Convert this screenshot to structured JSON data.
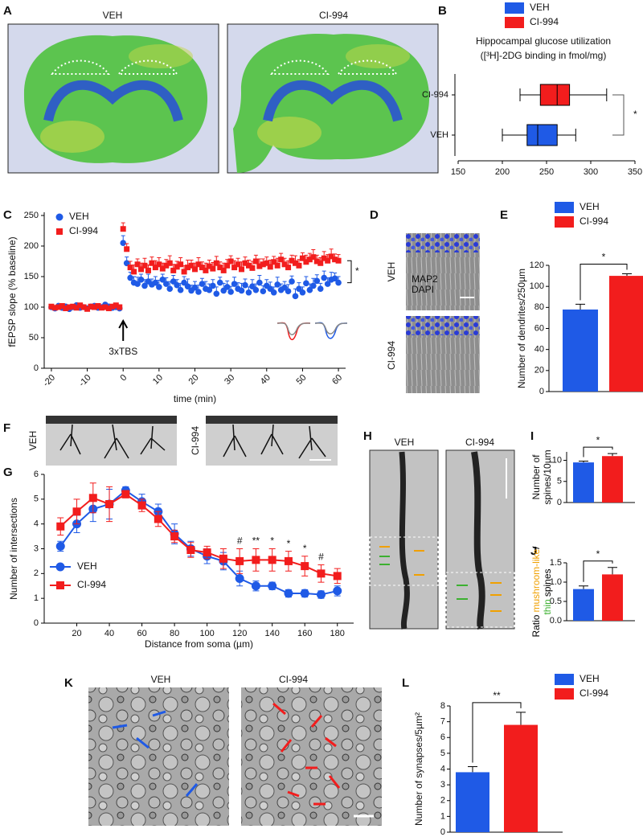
{
  "panels": [
    {
      "letter": "A",
      "labels": [
        "VEH",
        "CI-994"
      ]
    },
    {
      "letter": "B"
    },
    {
      "letter": "C"
    },
    {
      "letter": "D",
      "labels": [
        "VEH",
        "CI-994"
      ],
      "stains": [
        "MAP2",
        "DAPI"
      ],
      "stain_colors": [
        "#ffffff",
        "#3246ff"
      ]
    },
    {
      "letter": "E"
    },
    {
      "letter": "F",
      "labels": [
        "VEH",
        "CI-994"
      ]
    },
    {
      "letter": "G"
    },
    {
      "letter": "H",
      "labels": [
        "VEH",
        "CI-994"
      ]
    },
    {
      "letter": "I"
    },
    {
      "letter": "J"
    },
    {
      "letter": "K",
      "labels": [
        "VEH",
        "CI-994"
      ]
    },
    {
      "letter": "L"
    }
  ],
  "chart_data": [
    {
      "type": "box",
      "title": "Hippocampal glucose utilization",
      "subtitle": "([³H]-2DG binding in fmol/mg)",
      "series": [
        {
          "name": "VEH",
          "color": "#1f5ae6",
          "min": 200,
          "q1": 228,
          "median": 240,
          "q3": 262,
          "max": 283
        },
        {
          "name": "CI-994",
          "color": "#f21d1d",
          "min": 220,
          "q1": 243,
          "median": 262,
          "q3": 276,
          "max": 318
        }
      ],
      "xlim": [
        150,
        350
      ],
      "xticks": [
        150,
        200,
        250,
        300,
        350
      ],
      "significance": "*"
    },
    {
      "type": "scatter",
      "xlabel": "time (min)",
      "ylabel": "fEPSP slope (% baseline)",
      "x": [
        -20,
        -19,
        -18,
        -17,
        -16,
        -15,
        -14,
        -13,
        -12,
        -11,
        -10,
        -9,
        -8,
        -7,
        -6,
        -5,
        -4,
        -3,
        -2,
        -1,
        0,
        1,
        2,
        3,
        4,
        5,
        6,
        7,
        8,
        9,
        10,
        11,
        12,
        13,
        14,
        15,
        16,
        17,
        18,
        19,
        20,
        21,
        22,
        23,
        24,
        25,
        26,
        27,
        28,
        29,
        30,
        31,
        32,
        33,
        34,
        35,
        36,
        37,
        38,
        39,
        40,
        41,
        42,
        43,
        44,
        45,
        46,
        47,
        48,
        49,
        50,
        51,
        52,
        53,
        54,
        55,
        56,
        57,
        58,
        59,
        60
      ],
      "series": [
        {
          "name": "VEH",
          "color": "#1f5ae6",
          "marker": "circle",
          "values": [
            100,
            98,
            102,
            99,
            101,
            97,
            100,
            103,
            99,
            100,
            98,
            101,
            102,
            99,
            100,
            104,
            101,
            99,
            100,
            98,
            205,
            172,
            148,
            140,
            138,
            145,
            135,
            142,
            137,
            140,
            133,
            145,
            138,
            130,
            142,
            136,
            128,
            140,
            134,
            127,
            132,
            125,
            138,
            130,
            128,
            135,
            122,
            140,
            127,
            133,
            125,
            138,
            130,
            127,
            136,
            124,
            134,
            128,
            140,
            126,
            135,
            130,
            124,
            137,
            128,
            132,
            126,
            142,
            118,
            130,
            124,
            139,
            128,
            135,
            143,
            130,
            148,
            138,
            145,
            147,
            140
          ],
          "errors": [
            3,
            3,
            3,
            3,
            3,
            3,
            3,
            3,
            3,
            3,
            3,
            3,
            3,
            3,
            3,
            3,
            3,
            3,
            3,
            3,
            12,
            10,
            9,
            10,
            11,
            9,
            10,
            12,
            9,
            10,
            11,
            9,
            10,
            12,
            10,
            9,
            11,
            10,
            12,
            9,
            10,
            11,
            9,
            12,
            10,
            10,
            11,
            9,
            12,
            10,
            9,
            11,
            10,
            12,
            10,
            9,
            11,
            10,
            12,
            9,
            10,
            11,
            9,
            12,
            10,
            10,
            11,
            9,
            12,
            10,
            9,
            11,
            10,
            12,
            10,
            9,
            11,
            10,
            12,
            9,
            10
          ]
        },
        {
          "name": "CI-994",
          "color": "#f21d1d",
          "marker": "square",
          "values": [
            101,
            99,
            100,
            102,
            98,
            100,
            101,
            99,
            103,
            100,
            97,
            101,
            100,
            102,
            99,
            100,
            98,
            101,
            103,
            100,
            228,
            195,
            165,
            158,
            170,
            162,
            168,
            160,
            172,
            165,
            170,
            163,
            168,
            172,
            160,
            166,
            170,
            158,
            165,
            168,
            162,
            170,
            165,
            160,
            167,
            163,
            172,
            165,
            160,
            168,
            175,
            165,
            170,
            162,
            172,
            168,
            164,
            175,
            167,
            170,
            172,
            166,
            174,
            168,
            178,
            170,
            165,
            176,
            172,
            168,
            180,
            174,
            178,
            182,
            175,
            172,
            180,
            176,
            183,
            178,
            176
          ],
          "errors": [
            3,
            3,
            3,
            3,
            3,
            3,
            3,
            3,
            3,
            3,
            3,
            3,
            3,
            3,
            3,
            3,
            3,
            3,
            3,
            3,
            10,
            9,
            10,
            11,
            9,
            10,
            12,
            9,
            10,
            11,
            11,
            9,
            10,
            12,
            10,
            9,
            11,
            10,
            12,
            9,
            10,
            11,
            9,
            12,
            10,
            10,
            11,
            9,
            12,
            10,
            9,
            11,
            10,
            12,
            10,
            9,
            11,
            10,
            12,
            9,
            10,
            11,
            9,
            12,
            10,
            10,
            11,
            9,
            12,
            10,
            9,
            11,
            10,
            12,
            10,
            9,
            11,
            10,
            12,
            9,
            10
          ]
        }
      ],
      "xlim": [
        -22,
        62
      ],
      "xticks": [
        -20,
        -10,
        0,
        10,
        20,
        30,
        40,
        50,
        60
      ],
      "ylim": [
        0,
        250
      ],
      "yticks": [
        0,
        50,
        100,
        150,
        200,
        250
      ],
      "annotation": {
        "text": "3xTBS",
        "x": 0
      },
      "significance": "*"
    },
    {
      "type": "bar",
      "ylabel": "Number of dendrites/250µm",
      "series": [
        {
          "name": "VEH",
          "color": "#1f5ae6",
          "values": [
            78
          ],
          "errors": [
            5
          ]
        },
        {
          "name": "CI-994",
          "color": "#f21d1d",
          "values": [
            110
          ],
          "errors": [
            2
          ]
        }
      ],
      "ylim": [
        0,
        120
      ],
      "yticks": [
        0,
        20,
        40,
        60,
        80,
        100,
        120
      ],
      "significance": "*"
    },
    {
      "type": "line",
      "xlabel": "Distance from soma (µm)",
      "ylabel": "Number of intersections",
      "x": [
        10,
        20,
        30,
        40,
        50,
        60,
        70,
        80,
        90,
        100,
        110,
        120,
        130,
        140,
        150,
        160,
        170,
        180
      ],
      "series": [
        {
          "name": "VEH",
          "color": "#1f5ae6",
          "marker": "circle",
          "values": [
            3.1,
            4.0,
            4.6,
            4.8,
            5.35,
            4.9,
            4.5,
            3.6,
            3.0,
            2.7,
            2.5,
            1.8,
            1.5,
            1.5,
            1.2,
            1.2,
            1.15,
            1.3
          ],
          "errors": [
            0.2,
            0.35,
            0.5,
            0.6,
            0.15,
            0.3,
            0.3,
            0.4,
            0.3,
            0.3,
            0.35,
            0.3,
            0.2,
            0.15,
            0.15,
            0.15,
            0.15,
            0.2
          ]
        },
        {
          "name": "CI-994",
          "color": "#f21d1d",
          "marker": "square",
          "values": [
            3.9,
            4.5,
            5.05,
            4.8,
            5.2,
            4.75,
            4.2,
            3.5,
            2.95,
            2.85,
            2.6,
            2.5,
            2.55,
            2.55,
            2.5,
            2.3,
            2.0,
            1.9
          ],
          "errors": [
            0.35,
            0.5,
            0.6,
            0.7,
            0.15,
            0.25,
            0.3,
            0.25,
            0.3,
            0.25,
            0.4,
            0.5,
            0.45,
            0.45,
            0.4,
            0.4,
            0.35,
            0.3
          ]
        }
      ],
      "xlim": [
        0,
        190
      ],
      "xticks": [
        20,
        40,
        60,
        80,
        100,
        120,
        140,
        160,
        180
      ],
      "ylim": [
        0,
        6
      ],
      "yticks": [
        0,
        1,
        2,
        3,
        4,
        5,
        6
      ],
      "annotations": [
        {
          "x": 120,
          "text": "#"
        },
        {
          "x": 130,
          "text": "**"
        },
        {
          "x": 140,
          "text": "*"
        },
        {
          "x": 150,
          "text": "*"
        },
        {
          "x": 160,
          "text": "*"
        },
        {
          "x": 170,
          "text": "#"
        }
      ]
    },
    {
      "type": "bar",
      "ylabel": [
        "Number of",
        "spines/10µm"
      ],
      "series": [
        {
          "color": "#1f5ae6",
          "values": [
            9.5
          ],
          "errors": [
            0.3
          ]
        },
        {
          "color": "#f21d1d",
          "values": [
            11.0
          ],
          "errors": [
            0.6
          ]
        }
      ],
      "ylim": [
        0,
        12
      ],
      "yticks": [
        0,
        5,
        10
      ],
      "significance": "*"
    },
    {
      "type": "bar",
      "ylabel": [
        [
          {
            "text": "Ratio",
            "color": "#000000"
          },
          {
            "text": "mushroom-like",
            "color": "#f0a000"
          },
          {
            "text": "/",
            "color": "#000000"
          }
        ],
        [
          {
            "text": "thin",
            "color": "#3cb030"
          },
          {
            "text": "spines",
            "color": "#000000"
          }
        ]
      ],
      "series": [
        {
          "color": "#1f5ae6",
          "values": [
            0.82
          ],
          "errors": [
            0.08
          ]
        },
        {
          "color": "#f21d1d",
          "values": [
            1.2
          ],
          "errors": [
            0.18
          ]
        }
      ],
      "ylim": [
        0,
        1.5
      ],
      "yticks": [
        {
          "value": 0,
          "label": "0.0"
        },
        {
          "value": 0.5,
          "label": "0.5"
        },
        {
          "value": 1,
          "label": "1.0"
        },
        {
          "value": 1.5,
          "label": "1.5"
        }
      ],
      "significance": "*"
    },
    {
      "type": "bar",
      "ylabel": "Number of synapses/5µm²",
      "series": [
        {
          "name": "VEH",
          "color": "#1f5ae6",
          "values": [
            3.8
          ],
          "errors": [
            0.35
          ]
        },
        {
          "name": "CI-994",
          "color": "#f21d1d",
          "values": [
            6.8
          ],
          "errors": [
            0.8
          ]
        }
      ],
      "ylim": [
        0,
        8
      ],
      "yticks": [
        0,
        1,
        2,
        3,
        4,
        5,
        6,
        7,
        8
      ],
      "significance": "**"
    }
  ]
}
